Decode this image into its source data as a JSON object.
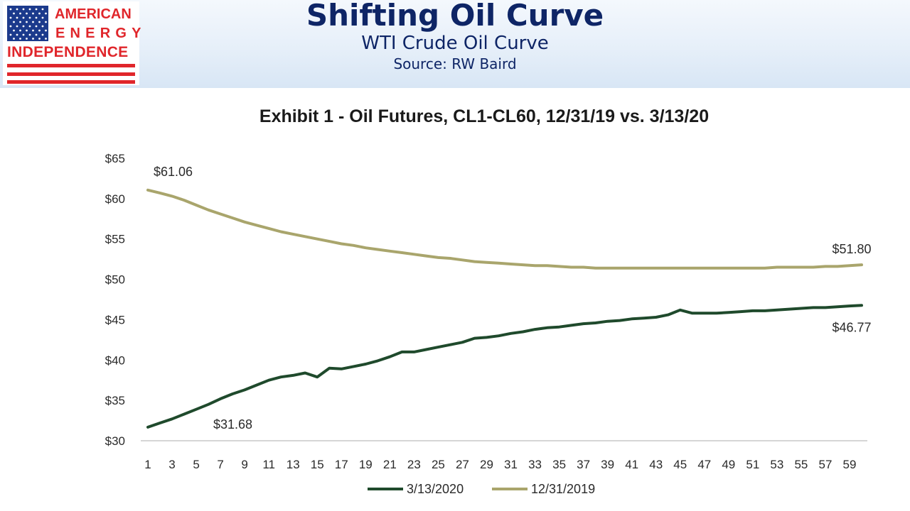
{
  "logo": {
    "line1": "AMERICAN",
    "line2": "ENERGY",
    "line3": "INDEPENDENCE",
    "colors": {
      "red": "#e0262b",
      "blue": "#1b3a8c"
    }
  },
  "header": {
    "title": "Shifting Oil Curve",
    "subtitle": "WTI Crude Oil Curve",
    "source": "Source: RW Baird"
  },
  "chart_data": {
    "type": "line",
    "title": "Exhibit 1 - Oil Futures, CL1-CL60, 12/31/19 vs. 3/13/20",
    "xlabel": "",
    "ylabel": "",
    "ylim": [
      30,
      65
    ],
    "yticks": [
      30,
      35,
      40,
      45,
      50,
      55,
      60,
      65
    ],
    "ytick_labels": [
      "$30",
      "$35",
      "$40",
      "$45",
      "$50",
      "$55",
      "$60",
      "$65"
    ],
    "xlim": [
      1,
      60
    ],
    "xtick_labels": [
      "1",
      "3",
      "5",
      "7",
      "9",
      "11",
      "13",
      "15",
      "17",
      "19",
      "21",
      "23",
      "25",
      "27",
      "29",
      "31",
      "33",
      "35",
      "37",
      "39",
      "41",
      "43",
      "45",
      "47",
      "49",
      "51",
      "53",
      "55",
      "57",
      "59"
    ],
    "grid": false,
    "legend_position": "bottom",
    "series": [
      {
        "name": "3/13/2020",
        "color": "#1f4a2c",
        "values": [
          31.68,
          32.2,
          32.7,
          33.3,
          33.9,
          34.5,
          35.2,
          35.8,
          36.3,
          36.9,
          37.5,
          37.9,
          38.1,
          38.4,
          37.9,
          39.0,
          38.9,
          39.2,
          39.5,
          39.9,
          40.4,
          41.0,
          41.0,
          41.3,
          41.6,
          41.9,
          42.2,
          42.7,
          42.8,
          43.0,
          43.3,
          43.5,
          43.8,
          44.0,
          44.1,
          44.3,
          44.5,
          44.6,
          44.8,
          44.9,
          45.1,
          45.2,
          45.3,
          45.6,
          46.2,
          45.8,
          45.8,
          45.8,
          45.9,
          46.0,
          46.1,
          46.1,
          46.2,
          46.3,
          46.4,
          46.5,
          46.5,
          46.6,
          46.7,
          46.77
        ]
      },
      {
        "name": "12/31/2019",
        "color": "#a9a56c",
        "values": [
          61.06,
          60.7,
          60.3,
          59.8,
          59.2,
          58.6,
          58.1,
          57.6,
          57.1,
          56.7,
          56.3,
          55.9,
          55.6,
          55.3,
          55.0,
          54.7,
          54.4,
          54.2,
          53.9,
          53.7,
          53.5,
          53.3,
          53.1,
          52.9,
          52.7,
          52.6,
          52.4,
          52.2,
          52.1,
          52.0,
          51.9,
          51.8,
          51.7,
          51.7,
          51.6,
          51.5,
          51.5,
          51.4,
          51.4,
          51.4,
          51.4,
          51.4,
          51.4,
          51.4,
          51.4,
          51.4,
          51.4,
          51.4,
          51.4,
          51.4,
          51.4,
          51.4,
          51.5,
          51.5,
          51.5,
          51.5,
          51.6,
          51.6,
          51.7,
          51.8
        ]
      }
    ],
    "annotations": [
      {
        "label": "$61.06",
        "series": "12/31/2019",
        "x": 1
      },
      {
        "label": "$51.80",
        "series": "12/31/2019",
        "x": 60
      },
      {
        "label": "$31.68",
        "series": "3/13/2020",
        "x": 1
      },
      {
        "label": "$46.77",
        "series": "3/13/2020",
        "x": 60
      }
    ]
  }
}
